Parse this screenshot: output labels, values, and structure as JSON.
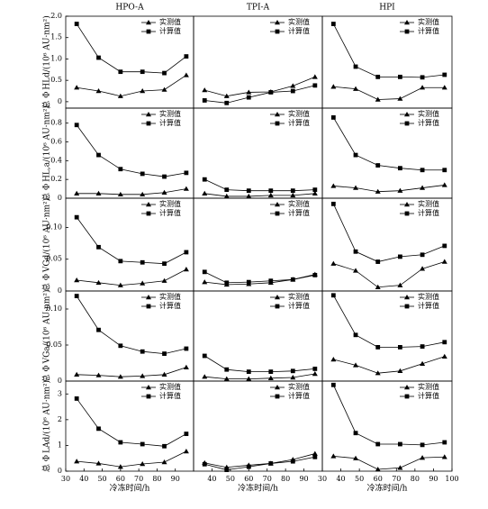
{
  "chart_data": [
    {
      "type": "line",
      "title": "HPO-A",
      "ylabel": "总 Φ HLd/(10⁶ AU·nm²)",
      "xlim": [
        30,
        100
      ],
      "ylim": [
        -0.15,
        2.0
      ],
      "yticks": [
        0,
        0.5,
        {
          "value": 1,
          "label": "1.0"
        },
        1.5,
        {
          "value": 2,
          "label": "2.0"
        }
      ],
      "x": [
        36,
        48,
        60,
        72,
        84,
        96
      ],
      "series": [
        {
          "name": "实测值",
          "marker": "triangle",
          "color": "#000000",
          "values": [
            0.33,
            0.25,
            0.13,
            0.25,
            0.28,
            0.62
          ]
        },
        {
          "name": "计算值",
          "marker": "square",
          "color": "#000000",
          "values": [
            1.82,
            1.03,
            0.7,
            0.7,
            0.67,
            1.06
          ]
        }
      ]
    },
    {
      "type": "line",
      "title": "TPI-A",
      "xlim": [
        30,
        100
      ],
      "ylim": [
        -0.15,
        2.0
      ],
      "x": [
        36,
        48,
        60,
        72,
        84,
        96
      ],
      "series": [
        {
          "name": "实测值",
          "marker": "triangle",
          "color": "#000000",
          "values": [
            0.27,
            0.13,
            0.22,
            0.23,
            0.37,
            0.58
          ]
        },
        {
          "name": "计算值",
          "marker": "square",
          "color": "#000000",
          "values": [
            0.03,
            -0.03,
            0.1,
            0.22,
            0.25,
            0.38
          ]
        }
      ]
    },
    {
      "type": "line",
      "title": "HPI",
      "xlim": [
        30,
        100
      ],
      "ylim": [
        -0.15,
        2.0
      ],
      "x": [
        36,
        48,
        60,
        72,
        84,
        96
      ],
      "series": [
        {
          "name": "实测值",
          "marker": "triangle",
          "color": "#000000",
          "values": [
            0.35,
            0.3,
            0.05,
            0.07,
            0.33,
            0.33
          ]
        },
        {
          "name": "计算值",
          "marker": "square",
          "color": "#000000",
          "values": [
            1.82,
            0.82,
            0.58,
            0.58,
            0.57,
            0.63
          ]
        }
      ]
    },
    {
      "type": "line",
      "ylabel": "总 Φ HL,a/(10⁶ AU·nm²)",
      "xlim": [
        30,
        100
      ],
      "ylim": [
        0,
        0.96
      ],
      "yticks": [
        0,
        0.2,
        0.4,
        0.6,
        0.8
      ],
      "x": [
        36,
        48,
        60,
        72,
        84,
        96
      ],
      "series": [
        {
          "name": "实测值",
          "marker": "triangle",
          "color": "#000000",
          "values": [
            0.05,
            0.05,
            0.04,
            0.04,
            0.06,
            0.1
          ]
        },
        {
          "name": "计算值",
          "marker": "square",
          "color": "#000000",
          "values": [
            0.78,
            0.46,
            0.31,
            0.26,
            0.23,
            0.27
          ]
        }
      ]
    },
    {
      "type": "line",
      "xlim": [
        30,
        100
      ],
      "ylim": [
        0,
        0.96
      ],
      "x": [
        36,
        48,
        60,
        72,
        84,
        96
      ],
      "series": [
        {
          "name": "实测值",
          "marker": "triangle",
          "color": "#000000",
          "values": [
            0.05,
            0.02,
            0.02,
            0.03,
            0.03,
            0.05
          ]
        },
        {
          "name": "计算值",
          "marker": "square",
          "color": "#000000",
          "values": [
            0.2,
            0.09,
            0.08,
            0.08,
            0.08,
            0.09
          ]
        }
      ]
    },
    {
      "type": "line",
      "xlim": [
        30,
        100
      ],
      "ylim": [
        0,
        0.96
      ],
      "x": [
        36,
        48,
        60,
        72,
        84,
        96
      ],
      "series": [
        {
          "name": "实测值",
          "marker": "triangle",
          "color": "#000000",
          "values": [
            0.13,
            0.11,
            0.07,
            0.08,
            0.11,
            0.14
          ]
        },
        {
          "name": "计算值",
          "marker": "square",
          "color": "#000000",
          "values": [
            0.86,
            0.46,
            0.35,
            0.32,
            0.3,
            0.3
          ]
        }
      ]
    },
    {
      "type": "line",
      "ylabel": "总 Φ VGd/(10⁶ AU·nm²)",
      "xlim": [
        30,
        100
      ],
      "ylim": [
        0,
        0.146
      ],
      "yticks": [
        0,
        0.05,
        {
          "value": 0.1,
          "label": "0.10"
        }
      ],
      "x": [
        36,
        48,
        60,
        72,
        84,
        96
      ],
      "series": [
        {
          "name": "实测值",
          "marker": "triangle",
          "color": "#000000",
          "values": [
            0.017,
            0.013,
            0.009,
            0.012,
            0.016,
            0.034
          ]
        },
        {
          "name": "计算值",
          "marker": "square",
          "color": "#000000",
          "values": [
            0.116,
            0.069,
            0.047,
            0.045,
            0.043,
            0.061
          ]
        }
      ]
    },
    {
      "type": "line",
      "xlim": [
        30,
        100
      ],
      "ylim": [
        0,
        0.146
      ],
      "x": [
        36,
        48,
        60,
        72,
        84,
        96
      ],
      "series": [
        {
          "name": "实测值",
          "marker": "triangle",
          "color": "#000000",
          "values": [
            0.014,
            0.01,
            0.011,
            0.013,
            0.018,
            0.026
          ]
        },
        {
          "name": "计算值",
          "marker": "square",
          "color": "#000000",
          "values": [
            0.03,
            0.013,
            0.014,
            0.016,
            0.018,
            0.025
          ]
        }
      ]
    },
    {
      "type": "line",
      "xlim": [
        30,
        100
      ],
      "ylim": [
        0,
        0.146
      ],
      "x": [
        36,
        48,
        60,
        72,
        84,
        96
      ],
      "series": [
        {
          "name": "实测值",
          "marker": "triangle",
          "color": "#000000",
          "values": [
            0.043,
            0.032,
            0.006,
            0.009,
            0.035,
            0.046
          ]
        },
        {
          "name": "计算值",
          "marker": "square",
          "color": "#000000",
          "values": [
            0.137,
            0.062,
            0.046,
            0.054,
            0.057,
            0.071
          ]
        }
      ]
    },
    {
      "type": "line",
      "ylabel": "总 Φ VGa/(10⁶ AU·nm²)",
      "xlim": [
        30,
        100
      ],
      "ylim": [
        0,
        0.125
      ],
      "yticks": [
        0,
        0.05,
        {
          "value": 0.1,
          "label": "0.10"
        }
      ],
      "x": [
        36,
        48,
        60,
        72,
        84,
        96
      ],
      "series": [
        {
          "name": "实测值",
          "marker": "triangle",
          "color": "#000000",
          "values": [
            0.009,
            0.008,
            0.006,
            0.007,
            0.009,
            0.019
          ]
        },
        {
          "name": "计算值",
          "marker": "square",
          "color": "#000000",
          "values": [
            0.118,
            0.071,
            0.049,
            0.041,
            0.038,
            0.045
          ]
        }
      ]
    },
    {
      "type": "line",
      "xlim": [
        30,
        100
      ],
      "ylim": [
        0,
        0.125
      ],
      "x": [
        36,
        48,
        60,
        72,
        84,
        96
      ],
      "series": [
        {
          "name": "实测值",
          "marker": "triangle",
          "color": "#000000",
          "values": [
            0.006,
            0.003,
            0.003,
            0.004,
            0.005,
            0.01
          ]
        },
        {
          "name": "计算值",
          "marker": "square",
          "color": "#000000",
          "values": [
            0.035,
            0.016,
            0.013,
            0.013,
            0.014,
            0.017
          ]
        }
      ]
    },
    {
      "type": "line",
      "xlim": [
        30,
        100
      ],
      "ylim": [
        0,
        0.125
      ],
      "x": [
        36,
        48,
        60,
        72,
        84,
        96
      ],
      "series": [
        {
          "name": "实测值",
          "marker": "triangle",
          "color": "#000000",
          "values": [
            0.03,
            0.022,
            0.011,
            0.014,
            0.024,
            0.034
          ]
        },
        {
          "name": "计算值",
          "marker": "square",
          "color": "#000000",
          "values": [
            0.119,
            0.064,
            0.047,
            0.047,
            0.048,
            0.054
          ]
        }
      ]
    },
    {
      "type": "line",
      "ylabel": "总 Φ LAd/(10⁶ AU·nm²)",
      "xlabel": "冷冻时间/h",
      "xlim": [
        30,
        100
      ],
      "ylim": [
        0,
        3.5
      ],
      "yticks": [
        0,
        1,
        2,
        3
      ],
      "xticks": [
        30,
        40,
        50,
        60,
        70,
        80,
        90
      ],
      "x": [
        36,
        48,
        60,
        72,
        84,
        96
      ],
      "series": [
        {
          "name": "实测值",
          "marker": "triangle",
          "color": "#000000",
          "values": [
            0.38,
            0.3,
            0.17,
            0.28,
            0.35,
            0.77
          ]
        },
        {
          "name": "计算值",
          "marker": "square",
          "color": "#000000",
          "values": [
            2.82,
            1.65,
            1.12,
            1.05,
            0.97,
            1.45
          ]
        }
      ]
    },
    {
      "type": "line",
      "xlabel": "冷冻时间/h",
      "xlim": [
        30,
        100
      ],
      "ylim": [
        0,
        3.5
      ],
      "xticks": [
        40,
        50,
        60,
        70,
        80,
        90
      ],
      "x": [
        36,
        48,
        60,
        72,
        84,
        96
      ],
      "series": [
        {
          "name": "实测值",
          "marker": "triangle",
          "color": "#000000",
          "values": [
            0.32,
            0.15,
            0.23,
            0.3,
            0.45,
            0.68
          ]
        },
        {
          "name": "计算值",
          "marker": "square",
          "color": "#000000",
          "values": [
            0.27,
            0.05,
            0.17,
            0.3,
            0.38,
            0.55
          ]
        }
      ]
    },
    {
      "type": "line",
      "xlabel": "冷冻时间/h",
      "xlim": [
        30,
        100
      ],
      "ylim": [
        0,
        3.5
      ],
      "xticks": [
        30,
        40,
        50,
        60,
        70,
        80,
        90,
        100
      ],
      "x": [
        36,
        48,
        60,
        72,
        84,
        96
      ],
      "series": [
        {
          "name": "实测值",
          "marker": "triangle",
          "color": "#000000",
          "values": [
            0.58,
            0.5,
            0.07,
            0.13,
            0.52,
            0.55
          ]
        },
        {
          "name": "计算值",
          "marker": "square",
          "color": "#000000",
          "values": [
            3.35,
            1.48,
            1.05,
            1.05,
            1.02,
            1.12
          ]
        }
      ]
    }
  ]
}
